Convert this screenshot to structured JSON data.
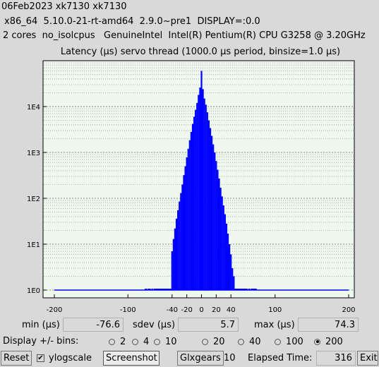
{
  "header": {
    "line1": "06Feb2023 xk7130 xk7130",
    "line2": "x86_64  5.10.0-21-rt-amd64  2.9.0~pre1  DISPLAY=:0.0",
    "line3": "2 cores  no_isolcpus   GenuineIntel  Intel(R) Pentium(R) CPU G3258 @ 3.20GHz"
  },
  "chart_data": {
    "type": "bar",
    "title": "Latency (µs) servo thread (1000.0 µs period, binsize=1.0 µs)",
    "xlabel": "",
    "ylabel": "",
    "y_scale": "log",
    "ylim": [
      1,
      100000
    ],
    "xlim": [
      -200,
      200
    ],
    "x_ticks": [
      "-200",
      "-100",
      "-40",
      "-20",
      "0",
      "20",
      "40",
      "100",
      "200"
    ],
    "y_ticks": [
      "1E0",
      "1E1",
      "1E2",
      "1E3",
      "1E4"
    ],
    "background": "#eef8ee",
    "bar_color": "#0000ff",
    "grid": true,
    "x": [
      -76,
      -75,
      -72,
      -70,
      -67,
      -64,
      -62,
      -60,
      -58,
      -56,
      -54,
      -52,
      -50,
      -48,
      -46,
      -44,
      -42,
      -40,
      -38,
      -36,
      -34,
      -32,
      -30,
      -28,
      -26,
      -24,
      -22,
      -20,
      -18,
      -16,
      -14,
      -12,
      -10,
      -8,
      -6,
      -4,
      -2,
      0,
      2,
      4,
      6,
      8,
      10,
      12,
      14,
      16,
      18,
      20,
      22,
      24,
      26,
      28,
      30,
      32,
      34,
      36,
      38,
      40,
      42,
      44,
      46,
      48,
      50,
      52,
      54,
      56,
      58,
      60,
      62,
      65,
      68,
      70,
      72,
      74
    ],
    "values": [
      1,
      1,
      1,
      1,
      1,
      1,
      1,
      1,
      1,
      1,
      1,
      1,
      1,
      1,
      1,
      1,
      1,
      7,
      13,
      22,
      36,
      55,
      85,
      130,
      200,
      320,
      500,
      780,
      1200,
      1850,
      2800,
      4200,
      6000,
      8500,
      12000,
      18000,
      26000,
      60000,
      24000,
      15000,
      11000,
      7500,
      5000,
      3400,
      2300,
      1500,
      1000,
      650,
      420,
      270,
      170,
      110,
      70,
      45,
      28,
      17,
      10,
      6,
      3,
      2,
      1,
      1,
      1,
      1,
      1,
      1,
      1,
      1,
      1,
      1,
      1,
      1,
      1,
      1
    ]
  },
  "stats": {
    "min_label": "min (µs)",
    "min_value": "-76.6",
    "sdev_label": "sdev (µs)",
    "sdev_value": "5.7",
    "max_label": "max (µs)",
    "max_value": "74.3"
  },
  "bins": {
    "label": "Display +/- bins:",
    "options": [
      "2",
      "4",
      "10",
      "20",
      "40",
      "100",
      "200"
    ],
    "selected": "200"
  },
  "bottom": {
    "reset_label": "Reset",
    "ylogscale_label": "ylogscale",
    "ylogscale_checked": true,
    "screenshot_label": "Screenshot",
    "glxgears_label": "Glxgears",
    "glxgears_count": "10",
    "elapsed_label": "Elapsed Time:",
    "elapsed_value": "316",
    "exit_label": "Exit"
  }
}
